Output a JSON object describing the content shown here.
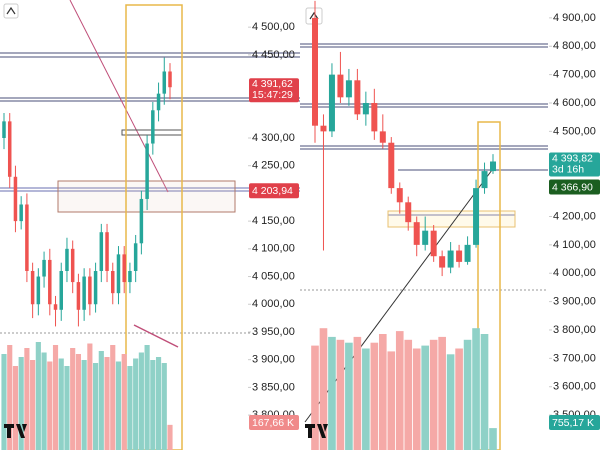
{
  "chart_data": [
    {
      "type": "candlestick",
      "ylim": [
        3737,
        4549
      ],
      "yticks": [
        {
          "value": 4500,
          "label": "4 500,00"
        },
        {
          "value": 4450,
          "label": "4 450,00"
        },
        {
          "value": 4300,
          "label": "4 300,00"
        },
        {
          "value": 4250,
          "label": "4 250,00"
        },
        {
          "value": 4150,
          "label": "4 150,00"
        },
        {
          "value": 4100,
          "label": "4 100,00"
        },
        {
          "value": 4050,
          "label": "4 050,00"
        },
        {
          "value": 4000,
          "label": "4 000,00"
        },
        {
          "value": 3950,
          "label": "3 950,00"
        },
        {
          "value": 3900,
          "label": "3 900,00"
        },
        {
          "value": 3850,
          "label": "3 850,00"
        },
        {
          "value": 3800,
          "label": "3 800,00"
        }
      ],
      "open": [
        4300,
        4330,
        4230,
        4150,
        4180,
        4060,
        4000,
        4050,
        4080,
        4000,
        3990,
        4060,
        4100,
        4040,
        3990,
        4050,
        4000,
        4060,
        4130,
        4060,
        4020,
        4090,
        4040,
        4060,
        4110,
        4190,
        4290,
        4350,
        4380,
        4420
      ],
      "high": [
        4345,
        4345,
        4250,
        4195,
        4200,
        4075,
        4065,
        4095,
        4100,
        4015,
        4075,
        4120,
        4115,
        4055,
        4065,
        4065,
        4075,
        4145,
        4145,
        4075,
        4105,
        4105,
        4075,
        4125,
        4205,
        4305,
        4365,
        4400,
        4445,
        4435
      ],
      "low": [
        4280,
        4210,
        4130,
        4135,
        4040,
        3975,
        3980,
        4030,
        3980,
        3960,
        3970,
        4040,
        4020,
        3960,
        3970,
        3980,
        3985,
        4040,
        4040,
        4000,
        4000,
        4020,
        4020,
        4040,
        4090,
        4170,
        4270,
        4330,
        4360,
        4370
      ],
      "close": [
        4330,
        4230,
        4150,
        4180,
        4060,
        4000,
        4050,
        4080,
        4000,
        3990,
        4060,
        4100,
        4040,
        3990,
        4050,
        4000,
        4060,
        4130,
        4060,
        4020,
        4090,
        4040,
        4060,
        4110,
        4190,
        4290,
        4350,
        4380,
        4420,
        4391.62
      ],
      "volume": [
        640,
        700,
        560,
        620,
        680,
        600,
        720,
        650,
        590,
        700,
        610,
        560,
        680,
        640,
        600,
        710,
        580,
        660,
        620,
        700,
        590,
        640,
        560,
        610,
        650,
        700,
        600,
        620,
        580,
        167.66
      ],
      "volume_label": "167,66 K",
      "last_price": {
        "value": 4391.62,
        "label": "4 391,62"
      },
      "countdown": "15:47:29",
      "marker_price": {
        "value": 4203.94,
        "label": "4 203,94"
      },
      "up_color": "#26a69a",
      "down_color": "#ef5350"
    },
    {
      "type": "candlestick",
      "ylim": [
        3377,
        4963
      ],
      "yticks": [
        {
          "value": 4900,
          "label": "4 900,00"
        },
        {
          "value": 4800,
          "label": "4 800,00"
        },
        {
          "value": 4700,
          "label": "4 700,00"
        },
        {
          "value": 4600,
          "label": "4 600,00"
        },
        {
          "value": 4500,
          "label": "4 500,00"
        },
        {
          "value": 4200,
          "label": "4 200,00"
        },
        {
          "value": 4100,
          "label": "4 100,00"
        },
        {
          "value": 4000,
          "label": "4 000,00"
        },
        {
          "value": 3900,
          "label": "3 900,00"
        },
        {
          "value": 3800,
          "label": "3 800,00"
        },
        {
          "value": 3700,
          "label": "3 700,00"
        },
        {
          "value": 3600,
          "label": "3 600,00"
        },
        {
          "value": 3500,
          "label": "3 500,00"
        }
      ],
      "open": [
        4900,
        4520,
        4500,
        4700,
        4620,
        4680,
        4560,
        4600,
        4500,
        4460,
        4300,
        4250,
        4180,
        4100,
        4150,
        4060,
        4020,
        4080,
        4040,
        4100,
        4300,
        4360
      ],
      "high": [
        4960,
        4560,
        4740,
        4780,
        4720,
        4720,
        4640,
        4650,
        4560,
        4480,
        4320,
        4270,
        4200,
        4200,
        4170,
        4080,
        4110,
        4100,
        4130,
        4330,
        4390,
        4420
      ],
      "low": [
        4460,
        4080,
        4480,
        4600,
        4590,
        4540,
        4520,
        4470,
        4440,
        4280,
        4210,
        4150,
        4060,
        4080,
        4040,
        3990,
        4000,
        4020,
        4030,
        4090,
        4280,
        4350
      ],
      "close": [
        4520,
        4500,
        4700,
        4620,
        4680,
        4560,
        4600,
        4500,
        4460,
        4300,
        4250,
        4180,
        4100,
        4150,
        4060,
        4020,
        4080,
        4040,
        4100,
        4300,
        4360,
        4393.82
      ],
      "volume": [
        3600,
        4200,
        3900,
        3800,
        3700,
        3900,
        3500,
        3700,
        4000,
        3400,
        4100,
        3800,
        3500,
        3600,
        3800,
        3900,
        3300,
        3500,
        3800,
        4200,
        4000,
        755.17
      ],
      "volume_label": "755,17 K",
      "last_price": {
        "value": 4393.82,
        "label": "4 393,82"
      },
      "countdown": "3d 16h",
      "marker_price": {
        "value": 4366.9,
        "label": "4 366,90"
      },
      "up_color": "#26a69a",
      "down_color": "#ef5350"
    }
  ]
}
